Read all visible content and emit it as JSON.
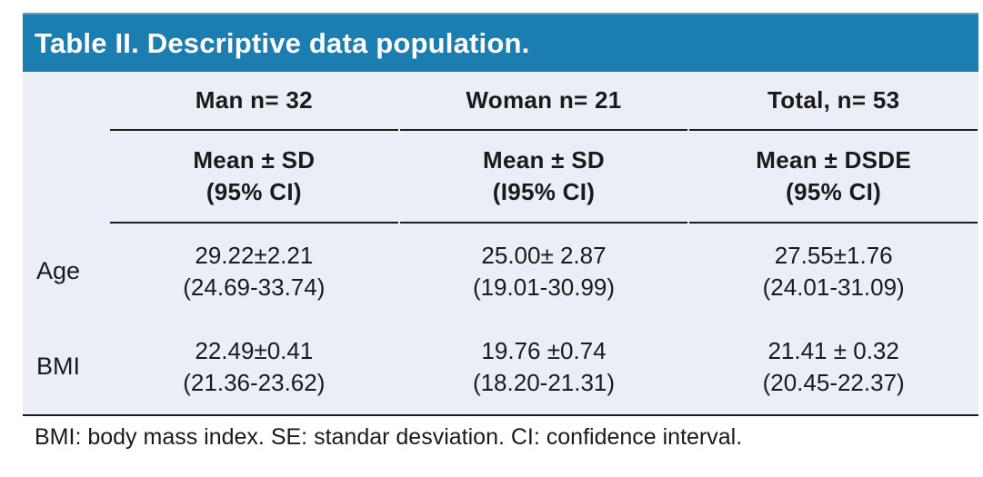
{
  "title": "Table II. Descriptive data population.",
  "colors": {
    "header_bg": "#1c7db1",
    "header_top_edge": "#549fc5",
    "body_bg": "#eaeef6",
    "title_text": "#ffffff",
    "text": "#1a1a1a",
    "rule": "#1c1c1c",
    "page_bg": "#ffffff"
  },
  "table": {
    "columns": [
      {
        "label": "Man n= 32",
        "sub_line1": "Mean ± SD",
        "sub_line2": "(95% CI)"
      },
      {
        "label": "Woman n= 21",
        "sub_line1": "Mean ± SD",
        "sub_line2": "(I95% CI)"
      },
      {
        "label": "Total, n= 53",
        "sub_line1": "Mean ± DSDE",
        "sub_line2": "(95% CI)"
      }
    ],
    "rows": [
      {
        "label": "Age",
        "cells": [
          {
            "value": "29.22±2.21",
            "ci": "(24.69-33.74)"
          },
          {
            "value": "25.00± 2.87",
            "ci": "(19.01-30.99)"
          },
          {
            "value": "27.55±1.76",
            "ci": "(24.01-31.09)"
          }
        ]
      },
      {
        "label": "BMI",
        "cells": [
          {
            "value": "22.49±0.41",
            "ci": "(21.36-23.62)"
          },
          {
            "value": "19.76 ±0.74",
            "ci": "(18.20-21.31)"
          },
          {
            "value": "21.41 ± 0.32",
            "ci": "(20.45-22.37)"
          }
        ]
      }
    ]
  },
  "footnote": "BMI: body mass index. SE: standar desviation. CI: confidence interval."
}
